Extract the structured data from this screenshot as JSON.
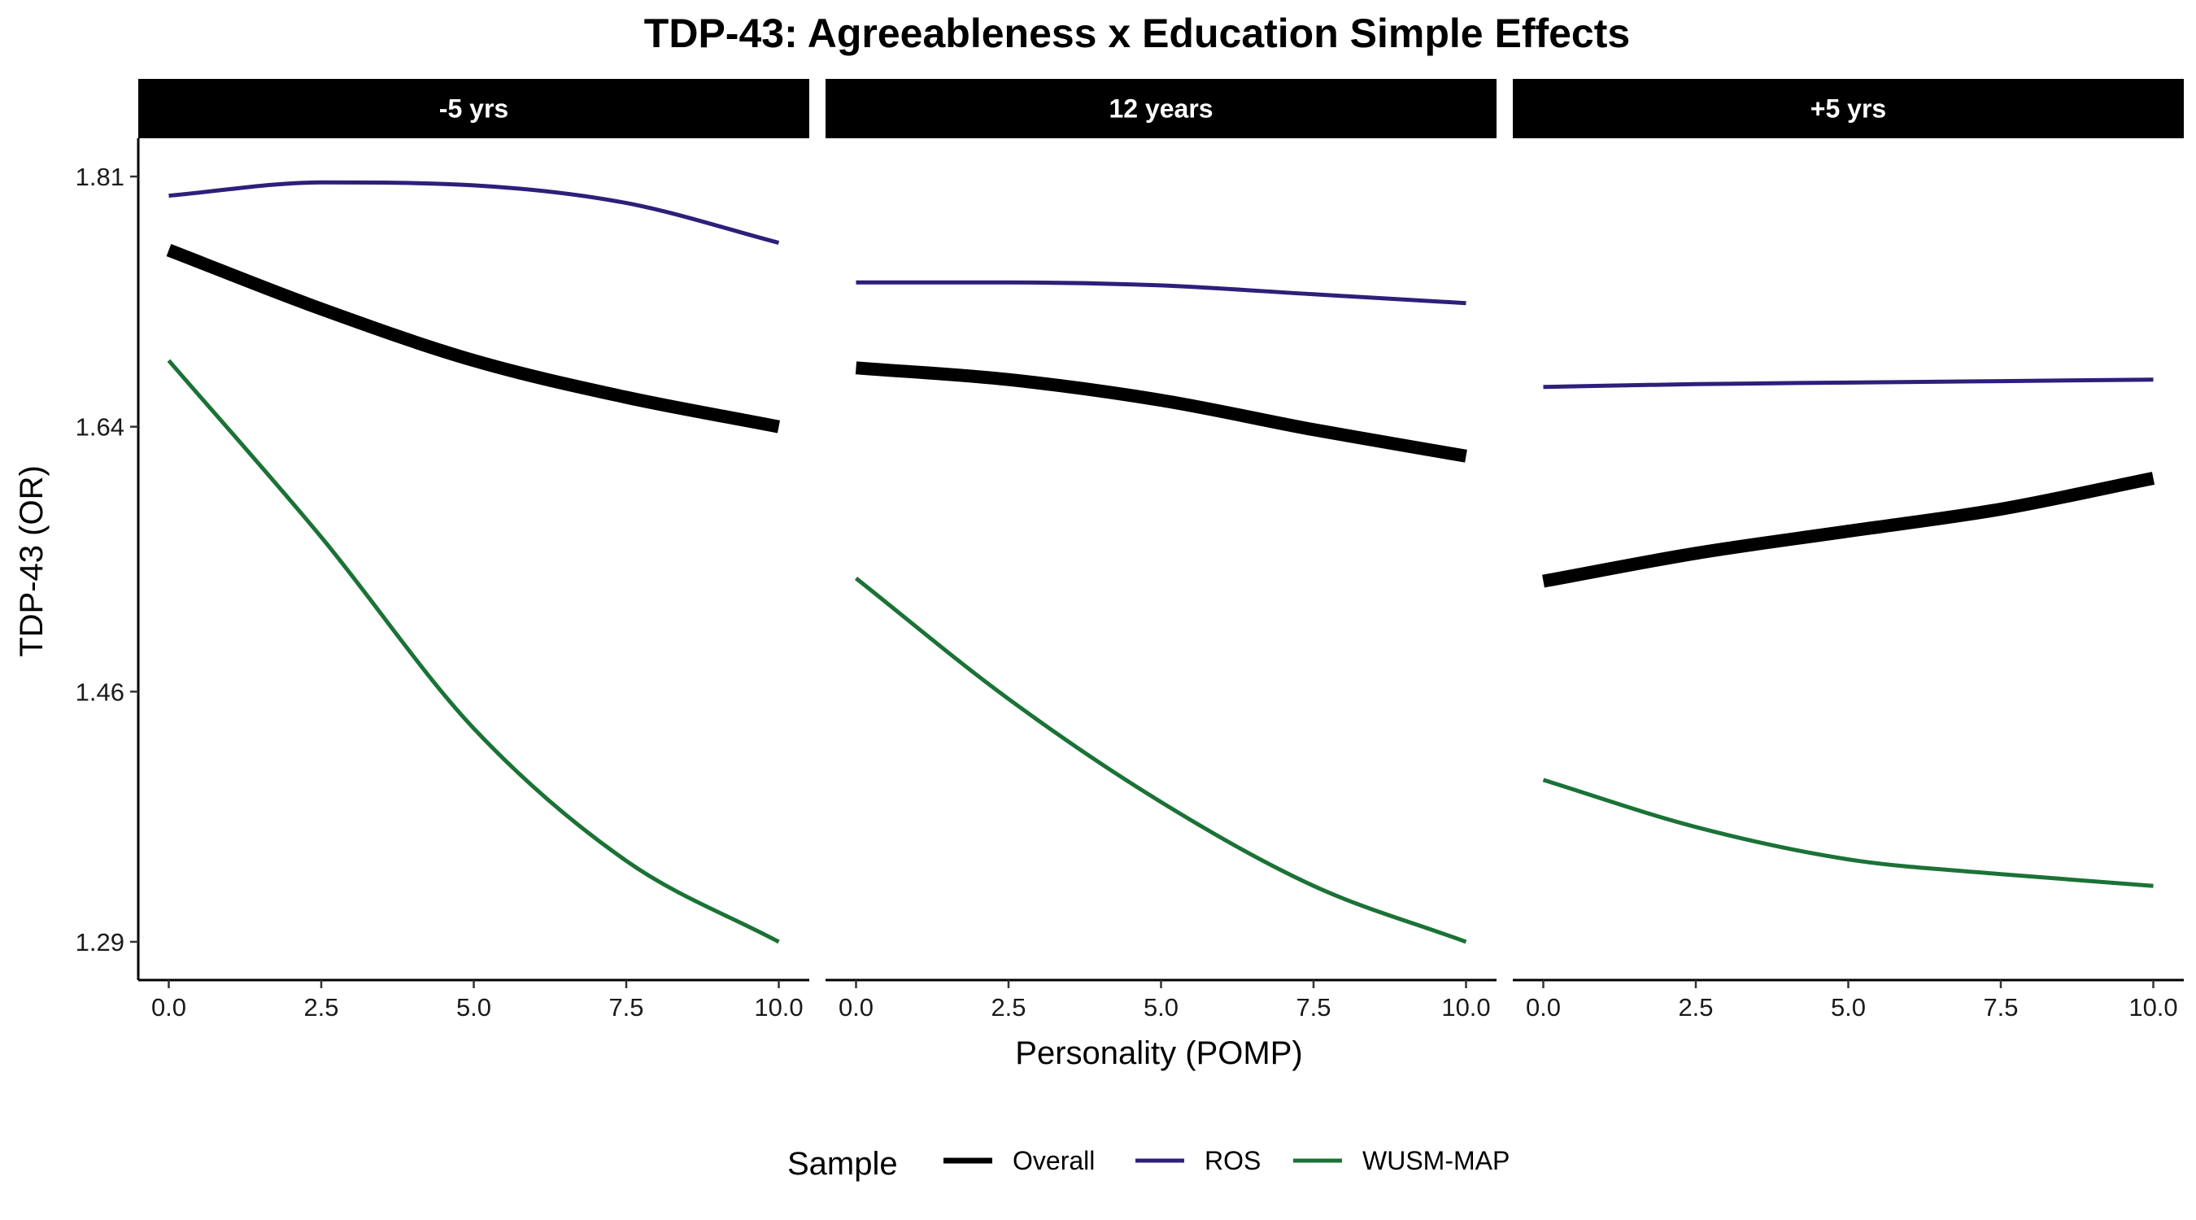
{
  "chart_data": {
    "type": "line",
    "title": "TDP-43: Agreeableness x Education Simple Effects",
    "xlabel": "Personality (POMP)",
    "ylabel": "TDP-43 (OR)",
    "xlim": [
      -0.5,
      10.5
    ],
    "ylim": [
      1.264,
      1.836
    ],
    "xticks": [
      0,
      2.5,
      5,
      7.5,
      10
    ],
    "xtick_labels": [
      "0.0",
      "2.5",
      "5.0",
      "7.5",
      "10.0"
    ],
    "yticks": [
      1.29,
      1.46,
      1.64,
      1.81
    ],
    "ytick_labels": [
      "1.29",
      "1.46",
      "1.64",
      "1.81"
    ],
    "grid": false,
    "legend": {
      "title": "Sample",
      "position": "bottom",
      "entries": [
        {
          "name": "Overall",
          "color": "#000000"
        },
        {
          "name": "ROS",
          "color": "#2d1f7a"
        },
        {
          "name": "WUSM-MAP",
          "color": "#1b7236"
        }
      ]
    },
    "x": [
      0,
      2.5,
      5,
      7.5,
      10
    ],
    "facets": [
      {
        "label": "-5 yrs",
        "series": [
          {
            "name": "Overall",
            "values": [
              1.76,
              1.72,
              1.685,
              1.66,
              1.64
            ]
          },
          {
            "name": "ROS",
            "values": [
              1.797,
              1.806,
              1.804,
              1.792,
              1.765
            ]
          },
          {
            "name": "WUSM-MAP",
            "values": [
              1.685,
              1.565,
              1.435,
              1.345,
              1.29
            ]
          }
        ]
      },
      {
        "label": "12 years",
        "series": [
          {
            "name": "Overall",
            "values": [
              1.68,
              1.672,
              1.658,
              1.638,
              1.62
            ]
          },
          {
            "name": "ROS",
            "values": [
              1.738,
              1.738,
              1.736,
              1.73,
              1.724
            ]
          },
          {
            "name": "WUSM-MAP",
            "values": [
              1.537,
              1.455,
              1.385,
              1.328,
              1.29
            ]
          }
        ]
      },
      {
        "label": "+5 yrs",
        "series": [
          {
            "name": "Overall",
            "values": [
              1.535,
              1.554,
              1.569,
              1.584,
              1.605
            ]
          },
          {
            "name": "ROS",
            "values": [
              1.667,
              1.669,
              1.67,
              1.671,
              1.672
            ]
          },
          {
            "name": "WUSM-MAP",
            "values": [
              1.4,
              1.368,
              1.346,
              1.336,
              1.328
            ]
          }
        ]
      }
    ]
  }
}
